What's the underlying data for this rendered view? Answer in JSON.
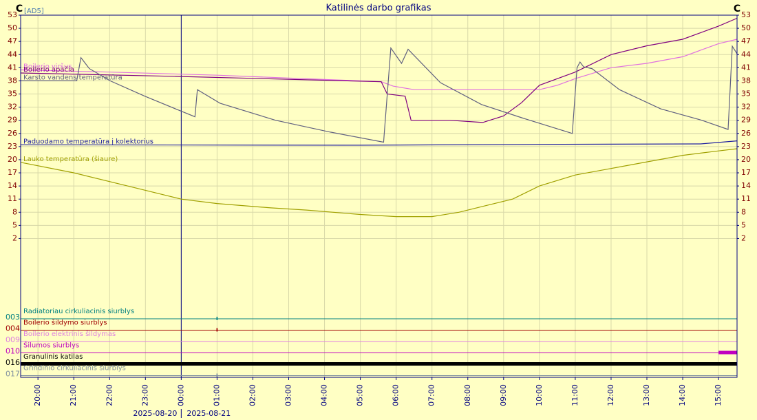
{
  "chart_data": {
    "type": "line",
    "title": "Katilinės darbo grafikas",
    "unit_left": "C",
    "unit_right": "C",
    "source_tag": "[AD5]",
    "dates": [
      "2025-08-20",
      "2025-08-21"
    ],
    "xlim": [
      "2025-08-20 19:31",
      "2025-08-21 15:31"
    ],
    "xticks": [
      {
        "value": "2025-08-20 20:00",
        "label": "20:00"
      },
      {
        "value": "2025-08-20 21:00",
        "label": "21:00"
      },
      {
        "value": "2025-08-20 22:00",
        "label": "22:00"
      },
      {
        "value": "2025-08-20 23:00",
        "label": "23:00"
      },
      {
        "value": "2025-08-21 00:00",
        "label": "00:00"
      },
      {
        "value": "2025-08-21 01:00",
        "label": "01:00"
      },
      {
        "value": "2025-08-21 02:00",
        "label": "02:00"
      },
      {
        "value": "2025-08-21 03:00",
        "label": "03:00"
      },
      {
        "value": "2025-08-21 04:00",
        "label": "04:00"
      },
      {
        "value": "2025-08-21 05:00",
        "label": "05:00"
      },
      {
        "value": "2025-08-21 06:00",
        "label": "06:00"
      },
      {
        "value": "2025-08-21 07:00",
        "label": "07:00"
      },
      {
        "value": "2025-08-21 08:00",
        "label": "08:00"
      },
      {
        "value": "2025-08-21 09:00",
        "label": "09:00"
      },
      {
        "value": "2025-08-21 10:00",
        "label": "10:00"
      },
      {
        "value": "2025-08-21 11:00",
        "label": "11:00"
      },
      {
        "value": "2025-08-21 12:00",
        "label": "12:00"
      },
      {
        "value": "2025-08-21 13:00",
        "label": "13:00"
      },
      {
        "value": "2025-08-21 14:00",
        "label": "14:00"
      },
      {
        "value": "2025-08-21 15:00",
        "label": "15:00"
      }
    ],
    "ylim": [
      0.5,
      53
    ],
    "yticks": [
      53,
      50,
      47,
      44,
      41,
      38,
      35,
      32,
      29,
      26,
      23,
      20,
      17,
      14,
      11,
      8,
      5,
      2
    ],
    "grid": true,
    "series": [
      {
        "name": "Boilerio viršus",
        "color": "#e070e0",
        "x": [
          "2025-08-20 19:31",
          "2025-08-20 22:00",
          "2025-08-21 01:00",
          "2025-08-21 05:35",
          "2025-08-21 05:55",
          "2025-08-21 06:30",
          "2025-08-21 10:00",
          "2025-08-21 10:30",
          "2025-08-21 11:00",
          "2025-08-21 12:00",
          "2025-08-21 13:00",
          "2025-08-21 14:00",
          "2025-08-21 15:00",
          "2025-08-21 15:31"
        ],
        "values": [
          40.5,
          40,
          39.3,
          37.8,
          36.8,
          36,
          36,
          37,
          38.5,
          41,
          42,
          43.5,
          46.5,
          47.5
        ]
      },
      {
        "name": "Boilerio apačia",
        "color": "#800080",
        "x": [
          "2025-08-20 19:31",
          "2025-08-21 00:00",
          "2025-08-21 05:35",
          "2025-08-21 05:45",
          "2025-08-21 06:15",
          "2025-08-21 06:25",
          "2025-08-21 07:30",
          "2025-08-21 08:25",
          "2025-08-21 09:00",
          "2025-08-21 09:30",
          "2025-08-21 10:00",
          "2025-08-21 11:00",
          "2025-08-21 12:00",
          "2025-08-21 13:00",
          "2025-08-21 14:00",
          "2025-08-21 15:00",
          "2025-08-21 15:31"
        ],
        "values": [
          39.8,
          39,
          37.8,
          35,
          34.5,
          29,
          29,
          28.5,
          30,
          33,
          37,
          40,
          44,
          46,
          47.5,
          50.5,
          52.3
        ]
      },
      {
        "name": "Karsto vandens temperatūra",
        "color": "#606080",
        "x": [
          "2025-08-20 19:31",
          "2025-08-20 21:05",
          "2025-08-20 21:12",
          "2025-08-20 21:26",
          "2025-08-20 22:01",
          "2025-08-20 22:59",
          "2025-08-20 23:56",
          "2025-08-21 00:23",
          "2025-08-21 00:27",
          "2025-08-21 01:05",
          "2025-08-21 02:38",
          "2025-08-21 04:10",
          "2025-08-21 05:39",
          "2025-08-21 05:51",
          "2025-08-21 06:09",
          "2025-08-21 06:20",
          "2025-08-21 07:14",
          "2025-08-21 08:23",
          "2025-08-21 09:32",
          "2025-08-21 10:55",
          "2025-08-21 11:03",
          "2025-08-21 11:08",
          "2025-08-21 11:14",
          "2025-08-21 11:28",
          "2025-08-21 12:14",
          "2025-08-21 13:23",
          "2025-08-21 14:32",
          "2025-08-21 15:16",
          "2025-08-21 15:23",
          "2025-08-21 15:31"
        ],
        "values": [
          38,
          38,
          43.3,
          40.8,
          38,
          34.5,
          31.3,
          29.8,
          36,
          32.9,
          29,
          26.3,
          24,
          45.5,
          42,
          45.2,
          37.6,
          32.6,
          29.5,
          26,
          41,
          42.3,
          41.2,
          40.8,
          36,
          31.6,
          29,
          26.9,
          45.9,
          44.2
        ]
      },
      {
        "name": "Paduodamo temperatūra į kolektorius",
        "color": "#2020a0",
        "x": [
          "2025-08-20 19:31",
          "2025-08-21 05:00",
          "2025-08-21 10:00",
          "2025-08-21 14:30",
          "2025-08-21 15:31"
        ],
        "values": [
          23.4,
          23.3,
          23.5,
          23.6,
          24.3
        ]
      },
      {
        "name": "Lauko temperatūra (šiaure)",
        "color": "#a0a000",
        "x": [
          "2025-08-20 19:31",
          "2025-08-20 21:00",
          "2025-08-20 22:30",
          "2025-08-20 23:30",
          "2025-08-21 00:00",
          "2025-08-21 01:00",
          "2025-08-21 02:30",
          "2025-08-21 03:30",
          "2025-08-21 05:00",
          "2025-08-21 06:00",
          "2025-08-21 07:00",
          "2025-08-21 07:45",
          "2025-08-21 08:30",
          "2025-08-21 09:15",
          "2025-08-21 10:00",
          "2025-08-21 11:00",
          "2025-08-21 12:00",
          "2025-08-21 13:00",
          "2025-08-21 14:00",
          "2025-08-21 15:00",
          "2025-08-21 15:31"
        ],
        "values": [
          19.4,
          17,
          14,
          12,
          11,
          10,
          9,
          8.5,
          7.5,
          7,
          7,
          8,
          9.5,
          11,
          14,
          16.5,
          18,
          19.5,
          21,
          22,
          22.5
        ]
      }
    ],
    "channels": [
      {
        "code": "003",
        "name": "Radiatoriau cirkuliacinis siurblys",
        "color": "#008080",
        "on": [
          [
            "2025-08-21 00:59",
            "2025-08-21 01:01"
          ]
        ]
      },
      {
        "code": "004",
        "name": "Boilerio šildymo  siurblys",
        "color": "#a00000",
        "on": [
          [
            "2025-08-21 00:59",
            "2025-08-21 01:01"
          ]
        ]
      },
      {
        "code": "009",
        "name": "Boilerio elektrinis šildymas",
        "color": "#e080e0",
        "on": []
      },
      {
        "code": "010",
        "name": "Šilumos siurblys",
        "color": "#c000c0",
        "on": [
          [
            "2025-08-21 15:00",
            "2025-08-21 15:31"
          ]
        ]
      },
      {
        "code": "016",
        "name": "Granulinis katilas",
        "color": "#000000",
        "on": [
          [
            "2025-08-20 19:31",
            "2025-08-21 15:31"
          ]
        ]
      },
      {
        "code": "017",
        "name": "Grindinio cirkuliacinis siurblys",
        "color": "#8090a0",
        "on": [
          [
            "2025-08-21 00:59",
            "2025-08-21 01:01"
          ]
        ]
      }
    ]
  }
}
